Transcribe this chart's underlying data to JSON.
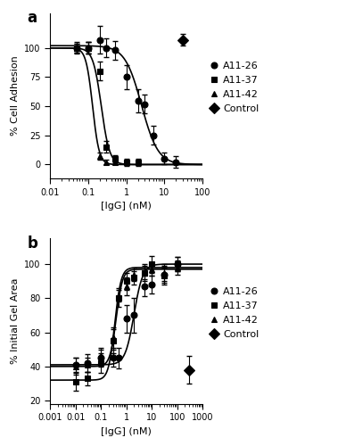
{
  "panel_a": {
    "title": "a",
    "xlabel": "[IgG] (nM)",
    "ylabel": "% Cell Adhesion",
    "xlim": [
      0.01,
      100
    ],
    "ylim": [
      -12,
      130
    ],
    "yticks": [
      0,
      25,
      50,
      75,
      100
    ],
    "series": [
      {
        "label": "A11-26",
        "marker": "o",
        "x": [
          0.05,
          0.1,
          0.2,
          0.3,
          0.5,
          1.0,
          2.0,
          3.0,
          5.0,
          10.0,
          20.0
        ],
        "y": [
          100,
          100,
          107,
          100,
          98,
          75,
          55,
          52,
          25,
          5,
          2
        ],
        "yerr": [
          5,
          5,
          12,
          8,
          8,
          10,
          10,
          8,
          8,
          5,
          5
        ],
        "ec50": 2.5,
        "hill": 2.0,
        "ymax": 102,
        "ymin": 0,
        "fit": true
      },
      {
        "label": "A11-37",
        "marker": "s",
        "x": [
          0.05,
          0.1,
          0.2,
          0.3,
          0.5,
          1.0,
          2.0
        ],
        "y": [
          100,
          100,
          80,
          15,
          5,
          2,
          2
        ],
        "yerr": [
          4,
          5,
          8,
          5,
          3,
          3,
          3
        ],
        "ec50": 0.22,
        "hill": 4.0,
        "ymax": 100,
        "ymin": 0,
        "fit": true
      },
      {
        "label": "A11-42",
        "marker": "^",
        "x": [
          0.05,
          0.1,
          0.2,
          0.3,
          0.5
        ],
        "y": [
          100,
          100,
          7,
          2,
          2
        ],
        "yerr": [
          4,
          5,
          3,
          2,
          2
        ],
        "ec50": 0.13,
        "hill": 5.0,
        "ymax": 100,
        "ymin": 0,
        "fit": true
      },
      {
        "label": "Control",
        "marker": "D",
        "x": [
          30.0
        ],
        "y": [
          107
        ],
        "yerr": [
          5
        ],
        "ec50": null,
        "hill": null,
        "ymax": null,
        "ymin": null,
        "fit": false
      }
    ]
  },
  "panel_b": {
    "title": "b",
    "xlabel": "[IgG] (nM)",
    "ylabel": "% Initial Gel Area",
    "xlim": [
      0.001,
      1000
    ],
    "ylim": [
      18,
      115
    ],
    "yticks": [
      20,
      40,
      60,
      80,
      100
    ],
    "series": [
      {
        "label": "A11-26",
        "marker": "o",
        "x": [
          0.01,
          0.03,
          0.1,
          0.3,
          0.5,
          1.0,
          2.0,
          5.0,
          10.0,
          30.0,
          100.0
        ],
        "y": [
          41,
          42,
          45,
          45,
          45,
          68,
          70,
          87,
          88,
          94,
          100
        ],
        "yerr": [
          4,
          5,
          5,
          5,
          6,
          8,
          10,
          6,
          5,
          5,
          4
        ],
        "ec50": 2.0,
        "hill": 2.5,
        "ymax": 100,
        "ymin": 41,
        "fit": true
      },
      {
        "label": "A11-37",
        "marker": "s",
        "x": [
          0.01,
          0.03,
          0.1,
          0.3,
          0.5,
          1.0,
          2.0,
          5.0,
          10.0,
          30.0,
          100.0
        ],
        "y": [
          31,
          33,
          42,
          55,
          80,
          90,
          92,
          95,
          100,
          93,
          100
        ],
        "yerr": [
          5,
          4,
          6,
          7,
          5,
          5,
          4,
          5,
          5,
          5,
          4
        ],
        "ec50": 0.35,
        "hill": 3.5,
        "ymax": 98,
        "ymin": 32,
        "fit": true
      },
      {
        "label": "A11-42",
        "marker": "^",
        "x": [
          0.01,
          0.03,
          0.1,
          0.3,
          0.5,
          1.0,
          2.0,
          5.0,
          10.0,
          30.0,
          100.0
        ],
        "y": [
          40,
          41,
          46,
          57,
          82,
          87,
          94,
          95,
          97,
          95,
          98
        ],
        "yerr": [
          5,
          4,
          5,
          6,
          4,
          5,
          4,
          4,
          4,
          5,
          4
        ],
        "ec50": 0.4,
        "hill": 3.5,
        "ymax": 97,
        "ymin": 40,
        "fit": true
      },
      {
        "label": "Control",
        "marker": "D",
        "x": [
          300.0
        ],
        "y": [
          38
        ],
        "yerr": [
          8
        ],
        "ec50": null,
        "hill": null,
        "ymax": null,
        "ymin": null,
        "fit": false
      }
    ]
  },
  "figure": {
    "bg_color": "white",
    "font_size": 8,
    "marker_size": 5,
    "line_width": 1.2,
    "legend_fontsize": 8,
    "cap_size": 2,
    "elinewidth": 0.8
  }
}
